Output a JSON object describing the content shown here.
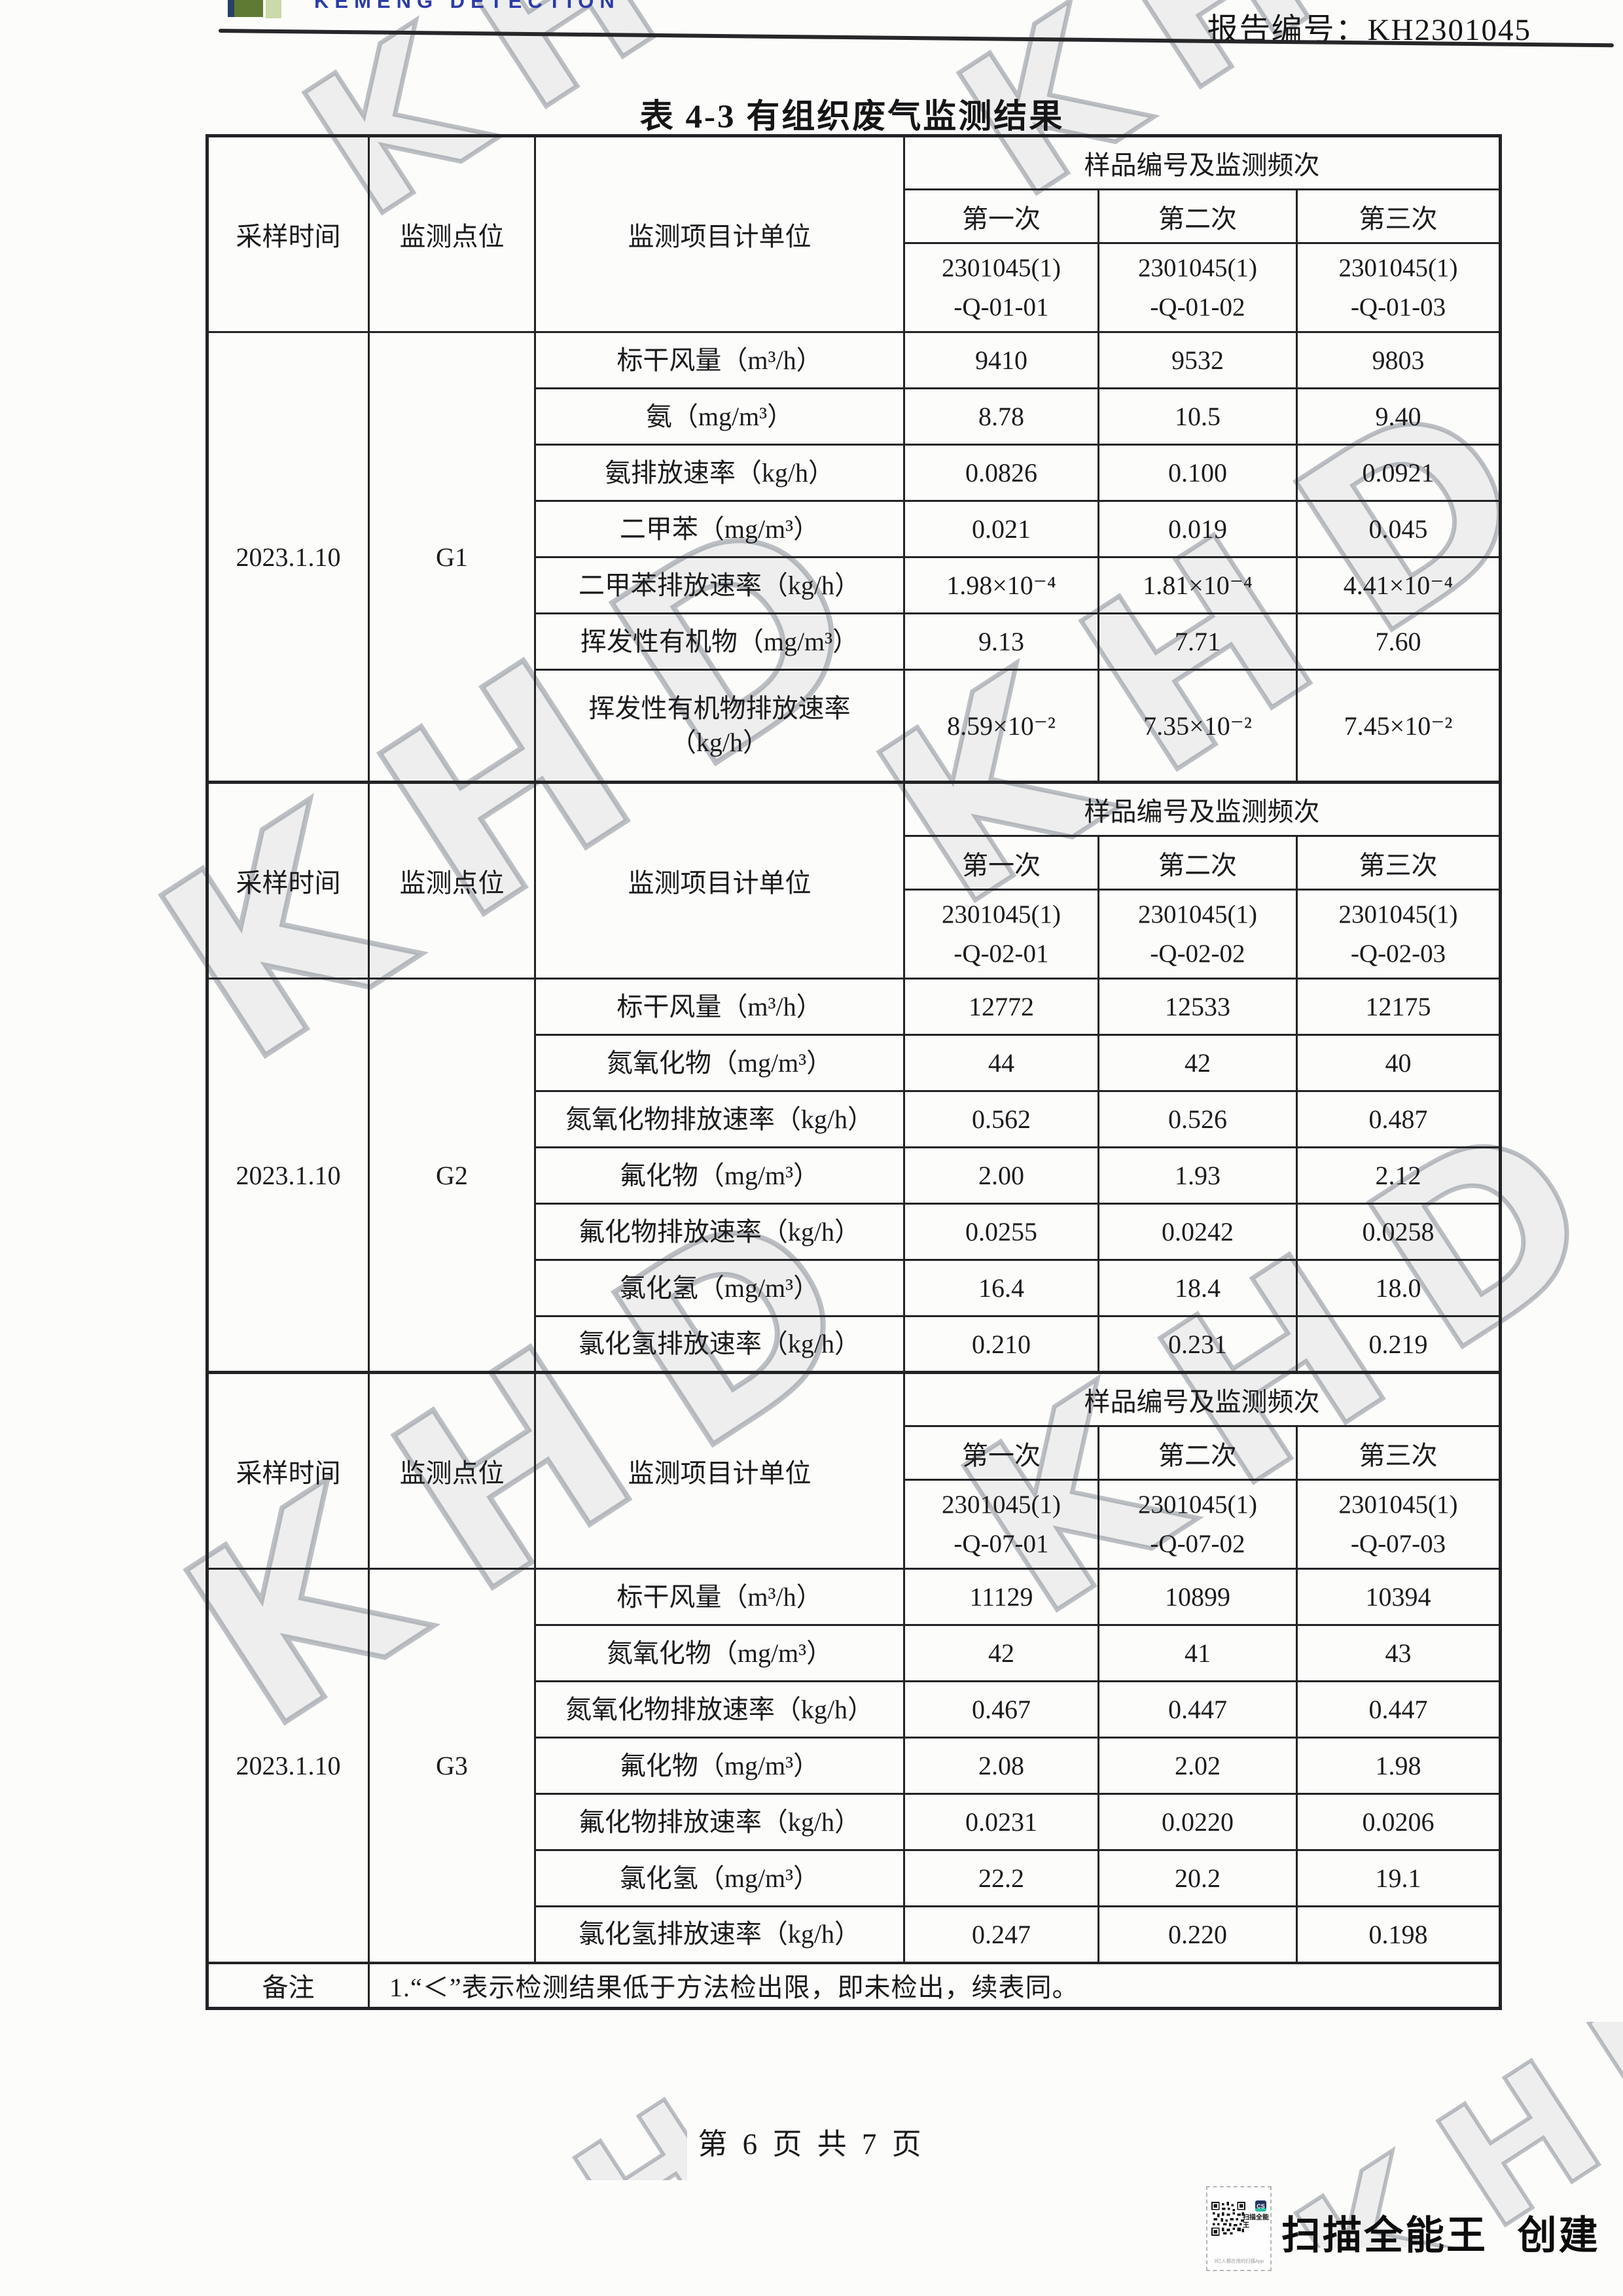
{
  "header": {
    "logo_text": "KEMENG DETECTION",
    "report_no": "报告编号：KH2301045"
  },
  "title": "表 4-3 有组织废气监测结果",
  "watermark_text": "KHD",
  "table": {
    "columns": {
      "sampling_time": "采样时间",
      "point": "监测点位",
      "item": "监测项目计单位",
      "sample_header": "样品编号及监测频次",
      "times": [
        "第一次",
        "第二次",
        "第三次"
      ]
    },
    "sections": [
      {
        "date": "2023.1.10",
        "point": "G1",
        "sample_ids": [
          [
            "2301045(1)",
            "-Q-01-01"
          ],
          [
            "2301045(1)",
            "-Q-01-02"
          ],
          [
            "2301045(1)",
            "-Q-01-03"
          ]
        ],
        "rows": [
          {
            "item": "标干风量（m³/h）",
            "values": [
              "9410",
              "9532",
              "9803"
            ]
          },
          {
            "item": "氨（mg/m³）",
            "values": [
              "8.78",
              "10.5",
              "9.40"
            ]
          },
          {
            "item": "氨排放速率（kg/h）",
            "values": [
              "0.0826",
              "0.100",
              "0.0921"
            ]
          },
          {
            "item": "二甲苯（mg/m³）",
            "values": [
              "0.021",
              "0.019",
              "0.045"
            ]
          },
          {
            "item": "二甲苯排放速率（kg/h）",
            "values": [
              "1.98×10⁻⁴",
              "1.81×10⁻⁴",
              "4.41×10⁻⁴"
            ]
          },
          {
            "item": "挥发性有机物（mg/m³）",
            "values": [
              "9.13",
              "7.71",
              "7.60"
            ]
          },
          {
            "item": [
              "挥发性有机物排放速率",
              "（kg/h）"
            ],
            "values": [
              "8.59×10⁻²",
              "7.35×10⁻²",
              "7.45×10⁻²"
            ],
            "tall": true
          }
        ]
      },
      {
        "date": "2023.1.10",
        "point": "G2",
        "sample_ids": [
          [
            "2301045(1)",
            "-Q-02-01"
          ],
          [
            "2301045(1)",
            "-Q-02-02"
          ],
          [
            "2301045(1)",
            "-Q-02-03"
          ]
        ],
        "rows": [
          {
            "item": "标干风量（m³/h）",
            "values": [
              "12772",
              "12533",
              "12175"
            ]
          },
          {
            "item": "氮氧化物（mg/m³）",
            "values": [
              "44",
              "42",
              "40"
            ]
          },
          {
            "item": "氮氧化物排放速率（kg/h）",
            "values": [
              "0.562",
              "0.526",
              "0.487"
            ]
          },
          {
            "item": "氟化物（mg/m³）",
            "values": [
              "2.00",
              "1.93",
              "2.12"
            ]
          },
          {
            "item": "氟化物排放速率（kg/h）",
            "values": [
              "0.0255",
              "0.0242",
              "0.0258"
            ]
          },
          {
            "item": "氯化氢（mg/m³）",
            "values": [
              "16.4",
              "18.4",
              "18.0"
            ]
          },
          {
            "item": "氯化氢排放速率（kg/h）",
            "values": [
              "0.210",
              "0.231",
              "0.219"
            ]
          }
        ]
      },
      {
        "date": "2023.1.10",
        "point": "G3",
        "sample_ids": [
          [
            "2301045(1)",
            "-Q-07-01"
          ],
          [
            "2301045(1)",
            "-Q-07-02"
          ],
          [
            "2301045(1)",
            "-Q-07-03"
          ]
        ],
        "rows": [
          {
            "item": "标干风量（m³/h）",
            "values": [
              "11129",
              "10899",
              "10394"
            ]
          },
          {
            "item": "氮氧化物（mg/m³）",
            "values": [
              "42",
              "41",
              "43"
            ]
          },
          {
            "item": "氮氧化物排放速率（kg/h）",
            "values": [
              "0.467",
              "0.447",
              "0.447"
            ]
          },
          {
            "item": "氟化物（mg/m³）",
            "values": [
              "2.08",
              "2.02",
              "1.98"
            ]
          },
          {
            "item": "氟化物排放速率（kg/h）",
            "values": [
              "0.0231",
              "0.0220",
              "0.0206"
            ]
          },
          {
            "item": "氯化氢（mg/m³）",
            "values": [
              "22.2",
              "20.2",
              "19.1"
            ]
          },
          {
            "item": "氯化氢排放速率（kg/h）",
            "values": [
              "0.247",
              "0.220",
              "0.198"
            ]
          }
        ]
      }
    ],
    "remark_label": "备注",
    "remark_text": "1.“＜”表示检测结果低于方法检出限，即未检出，续表同。"
  },
  "footer": {
    "page_text": "第 6 页 共 7 页"
  },
  "scanner_badge": {
    "cs_initials": "CS",
    "brand": "扫描全能王",
    "tagline": "3亿人都在用的扫描App",
    "created_text": "扫描全能王 创建"
  }
}
